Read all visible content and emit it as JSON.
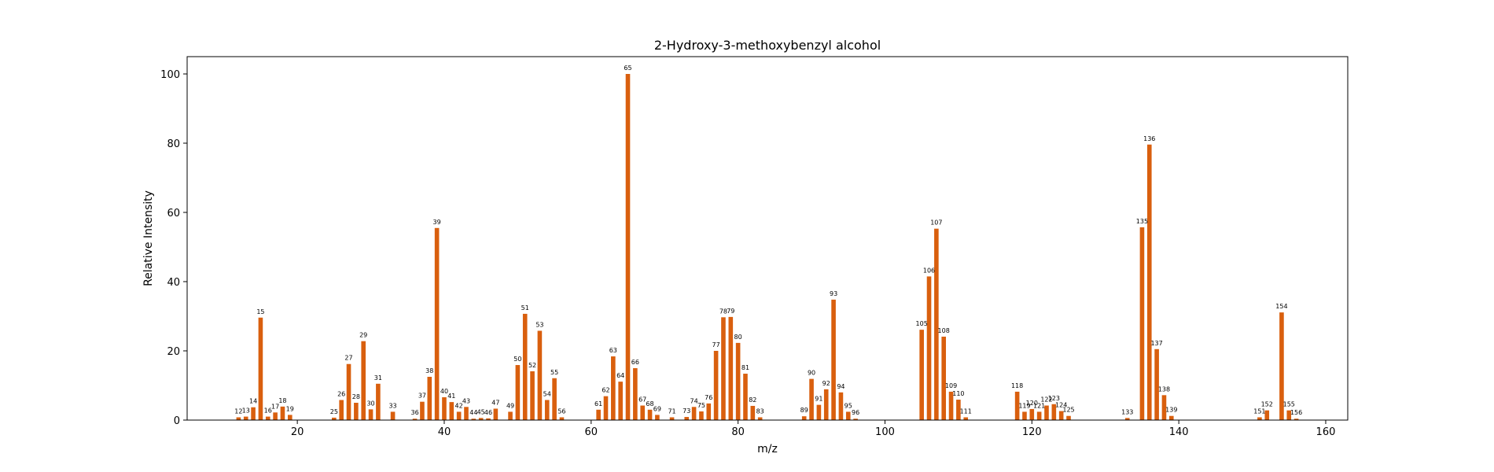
{
  "chart_data": {
    "type": "bar",
    "title": "2-Hydroxy-3-methoxybenzyl alcohol",
    "xlabel": "m/z",
    "ylabel": "Relative Intensity",
    "xlim": [
      5,
      163
    ],
    "ylim": [
      0,
      105
    ],
    "xticks": [
      20,
      40,
      60,
      80,
      100,
      120,
      140,
      160
    ],
    "yticks": [
      0,
      20,
      40,
      60,
      80,
      100
    ],
    "bar_color": "#d95f0e",
    "grid": false,
    "points": [
      {
        "x": 12,
        "y": 0.8
      },
      {
        "x": 13,
        "y": 1.0
      },
      {
        "x": 14,
        "y": 3.7
      },
      {
        "x": 15,
        "y": 29.6
      },
      {
        "x": 16,
        "y": 1.0
      },
      {
        "x": 17,
        "y": 2.2
      },
      {
        "x": 18,
        "y": 3.9
      },
      {
        "x": 19,
        "y": 1.5
      },
      {
        "x": 25,
        "y": 0.7
      },
      {
        "x": 26,
        "y": 5.8
      },
      {
        "x": 27,
        "y": 16.2
      },
      {
        "x": 28,
        "y": 5.0
      },
      {
        "x": 29,
        "y": 22.8
      },
      {
        "x": 30,
        "y": 3.1
      },
      {
        "x": 31,
        "y": 10.5
      },
      {
        "x": 33,
        "y": 2.4
      },
      {
        "x": 36,
        "y": 0.4
      },
      {
        "x": 37,
        "y": 5.3
      },
      {
        "x": 38,
        "y": 12.5
      },
      {
        "x": 39,
        "y": 55.5
      },
      {
        "x": 40,
        "y": 6.6
      },
      {
        "x": 41,
        "y": 5.2
      },
      {
        "x": 42,
        "y": 2.4
      },
      {
        "x": 43,
        "y": 3.8
      },
      {
        "x": 44,
        "y": 0.4
      },
      {
        "x": 45,
        "y": 0.6
      },
      {
        "x": 46,
        "y": 0.5
      },
      {
        "x": 47,
        "y": 3.3
      },
      {
        "x": 49,
        "y": 2.4
      },
      {
        "x": 50,
        "y": 15.9
      },
      {
        "x": 51,
        "y": 30.7
      },
      {
        "x": 52,
        "y": 14.1
      },
      {
        "x": 53,
        "y": 25.8
      },
      {
        "x": 54,
        "y": 5.8
      },
      {
        "x": 55,
        "y": 12.1
      },
      {
        "x": 56,
        "y": 0.8
      },
      {
        "x": 61,
        "y": 3.0
      },
      {
        "x": 62,
        "y": 6.9
      },
      {
        "x": 63,
        "y": 18.4
      },
      {
        "x": 64,
        "y": 11.1
      },
      {
        "x": 65,
        "y": 100.0
      },
      {
        "x": 66,
        "y": 15.0
      },
      {
        "x": 67,
        "y": 4.2
      },
      {
        "x": 68,
        "y": 3.0
      },
      {
        "x": 69,
        "y": 1.5
      },
      {
        "x": 71,
        "y": 0.8
      },
      {
        "x": 73,
        "y": 0.9
      },
      {
        "x": 74,
        "y": 3.8
      },
      {
        "x": 75,
        "y": 2.5
      },
      {
        "x": 76,
        "y": 4.8
      },
      {
        "x": 77,
        "y": 20.0
      },
      {
        "x": 78,
        "y": 29.7
      },
      {
        "x": 79,
        "y": 29.8
      },
      {
        "x": 80,
        "y": 22.3
      },
      {
        "x": 81,
        "y": 13.4
      },
      {
        "x": 82,
        "y": 4.1
      },
      {
        "x": 83,
        "y": 0.8
      },
      {
        "x": 89,
        "y": 1.1
      },
      {
        "x": 90,
        "y": 11.9
      },
      {
        "x": 91,
        "y": 4.4
      },
      {
        "x": 92,
        "y": 8.9
      },
      {
        "x": 93,
        "y": 34.8
      },
      {
        "x": 94,
        "y": 8.0
      },
      {
        "x": 95,
        "y": 2.4
      },
      {
        "x": 96,
        "y": 0.4
      },
      {
        "x": 105,
        "y": 26.1
      },
      {
        "x": 106,
        "y": 41.5
      },
      {
        "x": 107,
        "y": 55.3
      },
      {
        "x": 108,
        "y": 24.1
      },
      {
        "x": 109,
        "y": 8.2
      },
      {
        "x": 110,
        "y": 5.9
      },
      {
        "x": 111,
        "y": 0.8
      },
      {
        "x": 118,
        "y": 8.2
      },
      {
        "x": 119,
        "y": 2.4
      },
      {
        "x": 120,
        "y": 3.2
      },
      {
        "x": 121,
        "y": 2.4
      },
      {
        "x": 122,
        "y": 4.2
      },
      {
        "x": 123,
        "y": 4.6
      },
      {
        "x": 124,
        "y": 2.6
      },
      {
        "x": 125,
        "y": 1.2
      },
      {
        "x": 133,
        "y": 0.6
      },
      {
        "x": 135,
        "y": 55.7
      },
      {
        "x": 136,
        "y": 79.6
      },
      {
        "x": 137,
        "y": 20.5
      },
      {
        "x": 138,
        "y": 7.2
      },
      {
        "x": 139,
        "y": 1.2
      },
      {
        "x": 151,
        "y": 0.8
      },
      {
        "x": 152,
        "y": 2.8
      },
      {
        "x": 154,
        "y": 31.1
      },
      {
        "x": 155,
        "y": 2.8
      },
      {
        "x": 156,
        "y": 0.4
      }
    ]
  }
}
